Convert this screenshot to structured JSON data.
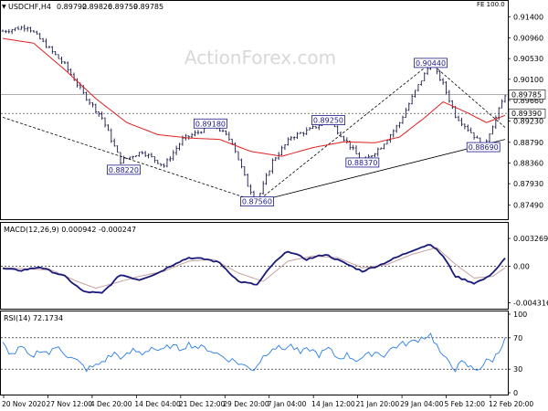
{
  "chart_data": [
    {
      "panel": "price",
      "type": "candlestick",
      "symbol": "USDCHF,H4",
      "ohlc_header": [
        "0.89792",
        "0.89826",
        "0.89759",
        "0.89785"
      ],
      "fe_label": "FE 100.0",
      "watermark": "ActionForex.com",
      "ylim": [
        0.8723,
        0.9152
      ],
      "y_ticks": [
        "0.91400",
        "0.90960",
        "0.90530",
        "0.90100",
        "0.89660",
        "0.89230",
        "0.88790",
        "0.88360",
        "0.87930",
        "0.87490"
      ],
      "current_price_label": "0.89785",
      "horizontal_levels": [
        {
          "label": "0.89785",
          "value": 0.89785,
          "style": "solid"
        },
        {
          "label": "0.89390",
          "value": 0.8939,
          "style": "dashed"
        }
      ],
      "x_ticks": [
        "20 Nov 2020",
        "27 Nov 12:00",
        "4 Dec 20:00",
        "14 Dec 04:00",
        "21 Dec 12:00",
        "29 Dec 20:00",
        "7 Jan 04:00",
        "14 Jan 12:00",
        "21 Jan 20:00",
        "29 Jan 04:00",
        "5 Feb 12:00",
        "12 Feb 20:00"
      ],
      "annotations": [
        {
          "label": "0.88220",
          "value": 0.8822,
          "bar": 39
        },
        {
          "label": "0.89180",
          "value": 0.8918,
          "bar": 67
        },
        {
          "label": "0.87560",
          "value": 0.8756,
          "bar": 82
        },
        {
          "label": "0.89250",
          "value": 0.8925,
          "bar": 105
        },
        {
          "label": "0.88370",
          "value": 0.8837,
          "bar": 116
        },
        {
          "label": "0.90440",
          "value": 0.9044,
          "bar": 138
        },
        {
          "label": "0.88690",
          "value": 0.8869,
          "bar": 155
        }
      ],
      "trendlines": [
        {
          "from": [
            0,
            0.8931
          ],
          "to": [
            82,
            0.8756
          ],
          "style": "dashed"
        },
        {
          "from": [
            82,
            0.8756
          ],
          "to": [
            162,
            0.8885
          ],
          "style": "solid"
        },
        {
          "from": [
            82,
            0.8756
          ],
          "to": [
            138,
            0.9044
          ],
          "style": "dashed"
        },
        {
          "from": [
            138,
            0.9044
          ],
          "to": [
            162,
            0.891
          ],
          "style": "dashed"
        }
      ],
      "close_path": [
        [
          0,
          0.911
        ],
        [
          8,
          0.912
        ],
        [
          14,
          0.908
        ],
        [
          20,
          0.904
        ],
        [
          26,
          0.898
        ],
        [
          32,
          0.893
        ],
        [
          38,
          0.884
        ],
        [
          45,
          0.886
        ],
        [
          52,
          0.883
        ],
        [
          58,
          0.8885
        ],
        [
          63,
          0.89
        ],
        [
          68,
          0.8918
        ],
        [
          74,
          0.888
        ],
        [
          79,
          0.879
        ],
        [
          82,
          0.8756
        ],
        [
          87,
          0.884
        ],
        [
          93,
          0.889
        ],
        [
          99,
          0.8905
        ],
        [
          105,
          0.8925
        ],
        [
          111,
          0.888
        ],
        [
          116,
          0.8837
        ],
        [
          122,
          0.887
        ],
        [
          128,
          0.892
        ],
        [
          133,
          0.8985
        ],
        [
          138,
          0.9044
        ],
        [
          142,
          0.9
        ],
        [
          146,
          0.8935
        ],
        [
          151,
          0.89
        ],
        [
          155,
          0.8869
        ],
        [
          159,
          0.893
        ],
        [
          162,
          0.8979
        ]
      ],
      "ma_path": [
        [
          0,
          0.9095
        ],
        [
          10,
          0.9085
        ],
        [
          20,
          0.903
        ],
        [
          30,
          0.897
        ],
        [
          40,
          0.892
        ],
        [
          50,
          0.8895
        ],
        [
          60,
          0.8888
        ],
        [
          70,
          0.8885
        ],
        [
          80,
          0.886
        ],
        [
          90,
          0.885
        ],
        [
          100,
          0.8868
        ],
        [
          110,
          0.888
        ],
        [
          120,
          0.8878
        ],
        [
          128,
          0.889
        ],
        [
          136,
          0.893
        ],
        [
          142,
          0.8963
        ],
        [
          150,
          0.894
        ],
        [
          156,
          0.892
        ],
        [
          162,
          0.8935
        ]
      ],
      "bar_count": 163
    },
    {
      "panel": "macd",
      "type": "line",
      "title": "MACD(12,26,9) 0.000942 -0.000247",
      "ylim": [
        -0.0048,
        0.0036
      ],
      "y_ticks": [
        "0.003269",
        "0.00",
        "-0.004316"
      ],
      "macd_path": [
        [
          0,
          -0.0003
        ],
        [
          6,
          -0.0005
        ],
        [
          12,
          -0.0001
        ],
        [
          20,
          -0.0012
        ],
        [
          26,
          -0.003
        ],
        [
          32,
          -0.0032
        ],
        [
          38,
          -0.001
        ],
        [
          44,
          -0.0016
        ],
        [
          50,
          -0.0008
        ],
        [
          56,
          0.0004
        ],
        [
          60,
          0.001
        ],
        [
          66,
          0.0008
        ],
        [
          70,
          0.0004
        ],
        [
          76,
          -0.0018
        ],
        [
          82,
          -0.0022
        ],
        [
          87,
          0.0002
        ],
        [
          92,
          0.0018
        ],
        [
          98,
          0.0008
        ],
        [
          104,
          0.0014
        ],
        [
          110,
          0.0004
        ],
        [
          116,
          -0.0006
        ],
        [
          122,
          0.0002
        ],
        [
          128,
          0.0012
        ],
        [
          133,
          0.002
        ],
        [
          138,
          0.0026
        ],
        [
          142,
          0.0012
        ],
        [
          146,
          -0.0012
        ],
        [
          152,
          -0.002
        ],
        [
          156,
          -0.0014
        ],
        [
          159,
          -0.0004
        ],
        [
          162,
          0.0009
        ]
      ],
      "signal_path": [
        [
          0,
          -0.0002
        ],
        [
          8,
          -0.0003
        ],
        [
          16,
          -0.0005
        ],
        [
          24,
          -0.0018
        ],
        [
          30,
          -0.0026
        ],
        [
          36,
          -0.002
        ],
        [
          44,
          -0.0012
        ],
        [
          52,
          -0.0006
        ],
        [
          60,
          0.0006
        ],
        [
          68,
          0.0008
        ],
        [
          76,
          -0.0008
        ],
        [
          84,
          -0.0018
        ],
        [
          92,
          0.0006
        ],
        [
          100,
          0.0012
        ],
        [
          108,
          0.001
        ],
        [
          116,
          -0.0002
        ],
        [
          124,
          0.0002
        ],
        [
          132,
          0.0014
        ],
        [
          140,
          0.0022
        ],
        [
          146,
          0.0002
        ],
        [
          152,
          -0.0014
        ],
        [
          158,
          -0.0012
        ],
        [
          162,
          -0.0002
        ]
      ]
    },
    {
      "panel": "rsi",
      "type": "line",
      "title": "RSI(14) 72.1734",
      "ylim": [
        0,
        100
      ],
      "y_ticks": [
        "100",
        "70",
        "30",
        "0"
      ],
      "levels": [
        70,
        30
      ],
      "rsi_path": [
        [
          0,
          62
        ],
        [
          3,
          48
        ],
        [
          6,
          58
        ],
        [
          9,
          44
        ],
        [
          12,
          55
        ],
        [
          15,
          50
        ],
        [
          18,
          60
        ],
        [
          21,
          46
        ],
        [
          24,
          40
        ],
        [
          27,
          30
        ],
        [
          30,
          34
        ],
        [
          33,
          42
        ],
        [
          36,
          50
        ],
        [
          39,
          44
        ],
        [
          42,
          54
        ],
        [
          45,
          50
        ],
        [
          48,
          58
        ],
        [
          51,
          52
        ],
        [
          54,
          60
        ],
        [
          57,
          56
        ],
        [
          60,
          62
        ],
        [
          63,
          58
        ],
        [
          66,
          56
        ],
        [
          69,
          50
        ],
        [
          72,
          44
        ],
        [
          75,
          40
        ],
        [
          78,
          34
        ],
        [
          81,
          30
        ],
        [
          84,
          46
        ],
        [
          87,
          58
        ],
        [
          90,
          56
        ],
        [
          93,
          60
        ],
        [
          96,
          50
        ],
        [
          99,
          56
        ],
        [
          102,
          48
        ],
        [
          105,
          56
        ],
        [
          108,
          44
        ],
        [
          111,
          48
        ],
        [
          114,
          42
        ],
        [
          117,
          46
        ],
        [
          120,
          52
        ],
        [
          123,
          48
        ],
        [
          126,
          58
        ],
        [
          129,
          62
        ],
        [
          132,
          64
        ],
        [
          135,
          70
        ],
        [
          138,
          74
        ],
        [
          140,
          60
        ],
        [
          142,
          44
        ],
        [
          144,
          40
        ],
        [
          146,
          30
        ],
        [
          148,
          38
        ],
        [
          150,
          34
        ],
        [
          152,
          30
        ],
        [
          154,
          32
        ],
        [
          156,
          40
        ],
        [
          158,
          42
        ],
        [
          160,
          52
        ],
        [
          162,
          72
        ]
      ]
    }
  ]
}
